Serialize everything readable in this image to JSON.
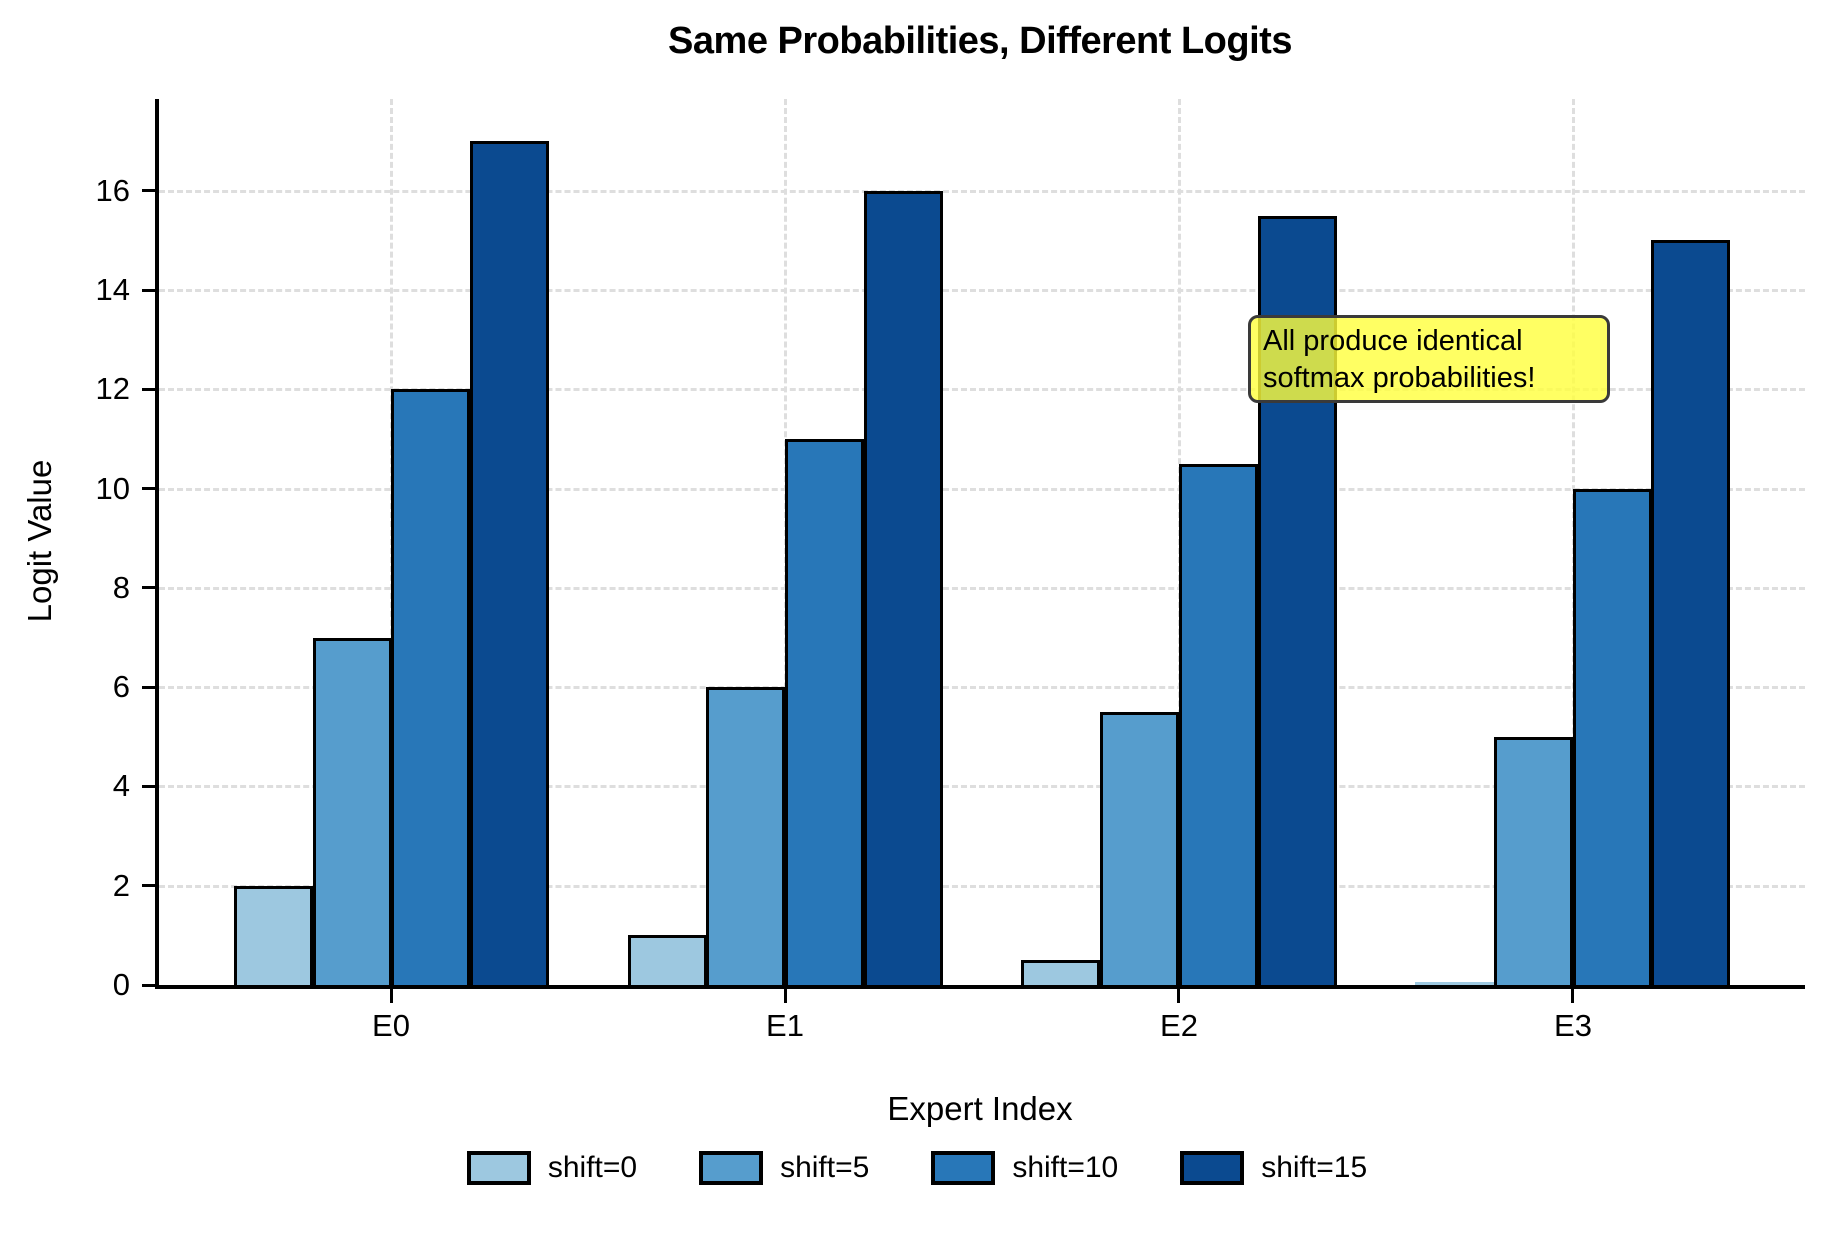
{
  "chart_data": {
    "type": "bar",
    "title": "Same Probabilities, Different Logits",
    "xlabel": "Expert Index",
    "ylabel": "Logit Value",
    "categories": [
      "E0",
      "E1",
      "E2",
      "E3"
    ],
    "series": [
      {
        "name": "shift=0",
        "color": "#9dc8e0",
        "values": [
          2,
          1,
          0.5,
          0
        ]
      },
      {
        "name": "shift=5",
        "color": "#569dcd",
        "values": [
          7,
          6,
          5.5,
          5
        ]
      },
      {
        "name": "shift=10",
        "color": "#2877b8",
        "values": [
          12,
          11,
          10.5,
          10
        ]
      },
      {
        "name": "shift=15",
        "color": "#0b4a90",
        "values": [
          17,
          16,
          15.5,
          15
        ]
      }
    ],
    "ylim": [
      0,
      17.85
    ],
    "xlim": [
      -0.59,
      3.59
    ],
    "bar_width": 0.2,
    "yticks": [
      0,
      2,
      4,
      6,
      8,
      10,
      12,
      14,
      16
    ],
    "grid": "dashed",
    "legend_position": "bottom-center",
    "annotation": {
      "lines": [
        "All produce identical",
        "softmax probabilities!"
      ],
      "fill": "#ffff3c",
      "fill_opacity": 0.8,
      "border": "#3a3a3a",
      "text_color": "#000000"
    },
    "bar_edge_color": "#000000",
    "grid_color": "#dedede",
    "background_color": "#ffffff"
  }
}
